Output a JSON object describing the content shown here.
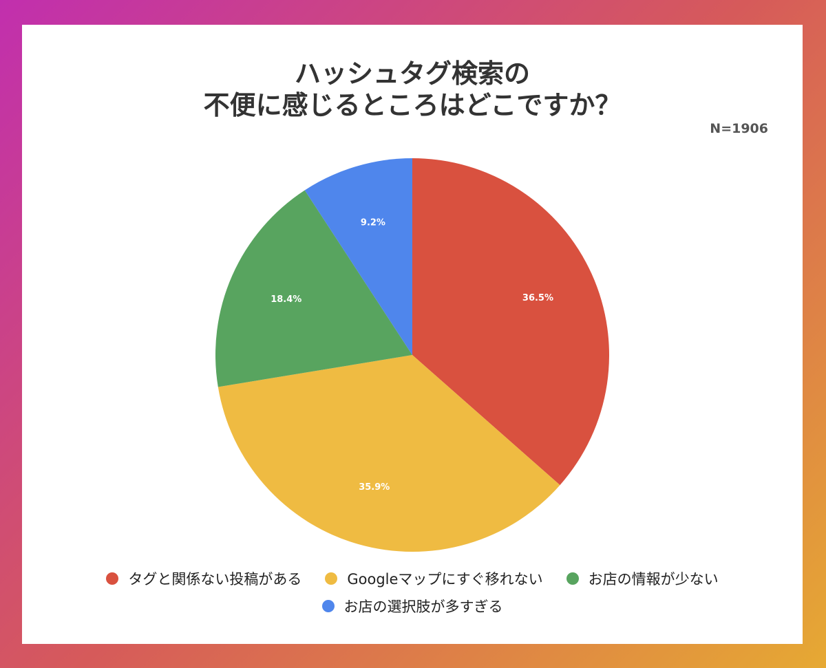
{
  "chart_data": {
    "type": "pie",
    "title_lines": [
      "ハッシュタグ検索の",
      "不便に感じるところはどこですか？"
    ],
    "sample_size": "N=1906",
    "categories": [
      "タグと関係ない投稿がある",
      "Googleマップにすぐ移れない",
      "お店の情報が少ない",
      "お店の選択肢が多すぎる"
    ],
    "values": [
      36.5,
      35.9,
      18.4,
      9.2
    ],
    "value_labels": [
      "36.5%",
      "35.9%",
      "18.4%",
      "9.2%"
    ],
    "colors": [
      "#d9513f",
      "#efbb42",
      "#58a45f",
      "#4f86ec"
    ],
    "start": "12 o'clock",
    "direction": "clockwise",
    "legend_position": "bottom"
  }
}
